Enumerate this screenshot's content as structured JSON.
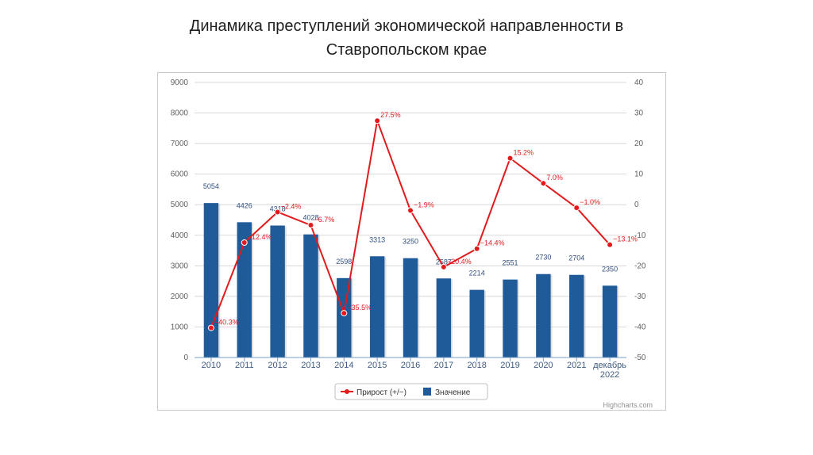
{
  "slide": {
    "title_line1": "Динамика преступлений экономической направленности в",
    "title_line2": "Ставропольском крае"
  },
  "credits": "Highcharts.com",
  "colors": {
    "bar": "#1f5b99",
    "line": "#e31a1c",
    "grid": "#d8d8d8",
    "axis": "#7a9cc6"
  },
  "chart_data": {
    "type": "bar",
    "categories": [
      "2010",
      "2011",
      "2012",
      "2013",
      "2014",
      "2015",
      "2016",
      "2017",
      "2018",
      "2019",
      "2020",
      "2021",
      "декабрь 2022"
    ],
    "series": [
      {
        "name": "Значение",
        "type": "bar",
        "axis": "left",
        "values": [
          5054,
          4426,
          4318,
          4028,
          2598,
          3313,
          3250,
          2587,
          2214,
          2551,
          2730,
          2704,
          2350
        ],
        "labels": [
          "5054",
          "4426",
          "4318",
          "4028",
          "2598",
          "3313",
          "3250",
          "2587",
          "2214",
          "2551",
          "2730",
          "2704",
          "2350"
        ]
      },
      {
        "name": "Прирост (+/−)",
        "type": "line",
        "axis": "right",
        "values": [
          -40.3,
          -12.4,
          -2.4,
          -6.7,
          -35.5,
          27.5,
          -1.9,
          -20.4,
          -14.4,
          15.2,
          7.0,
          -1.0,
          -13.1
        ],
        "labels": [
          "−40.3%",
          "−12.4%",
          "−2.4%",
          "−6.7%",
          "−35.5%",
          "27.5%",
          "−1.9%",
          "−20.4%",
          "−14.4%",
          "15.2%",
          "7.0%",
          "−1.0%",
          "−13.1%"
        ]
      }
    ],
    "y_left": {
      "min": 0,
      "max": 9000,
      "ticks": [
        0,
        1000,
        2000,
        3000,
        4000,
        5000,
        6000,
        7000,
        8000,
        9000
      ]
    },
    "y_right": {
      "min": -50,
      "max": 40,
      "ticks": [
        -50,
        -40,
        -30,
        -20,
        -10,
        0,
        10,
        20,
        30,
        40
      ]
    },
    "grid": true,
    "legend_position": "bottom-center",
    "legend": [
      "Прирост (+/−)",
      "Значение"
    ]
  }
}
